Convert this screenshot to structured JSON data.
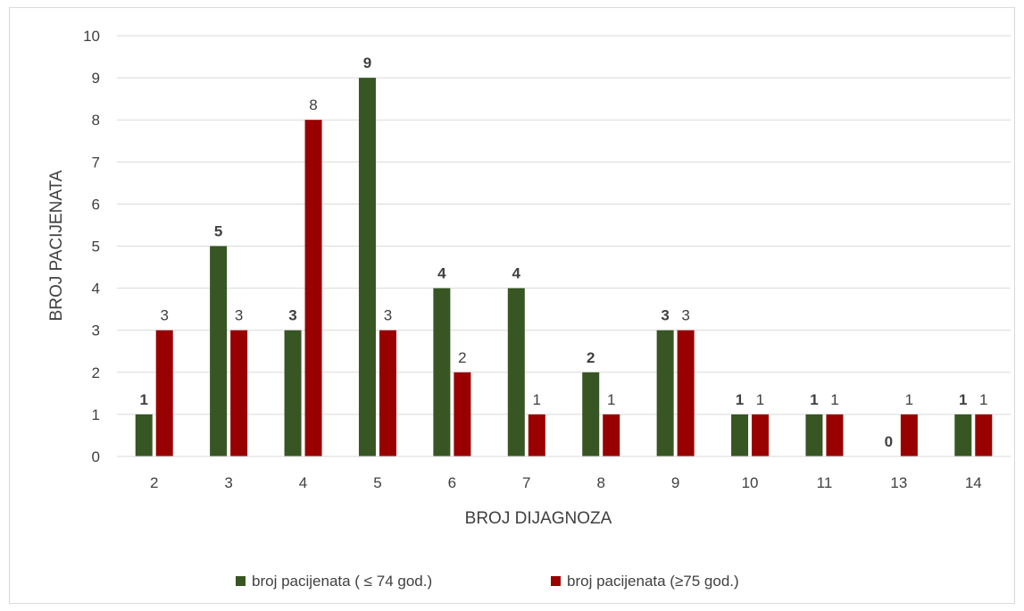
{
  "chart_data": {
    "type": "bar",
    "categories": [
      "2",
      "3",
      "4",
      "5",
      "6",
      "7",
      "8",
      "9",
      "10",
      "11",
      "13",
      "14"
    ],
    "series": [
      {
        "name": "broj pacijenata ( ≤ 74 god.)",
        "color": "#375623",
        "values": [
          1,
          5,
          3,
          9,
          4,
          4,
          2,
          3,
          1,
          1,
          0,
          1
        ]
      },
      {
        "name": "broj pacijenata (≥75 god.)",
        "color": "#990000",
        "values": [
          3,
          3,
          8,
          3,
          2,
          1,
          1,
          3,
          1,
          1,
          1,
          1
        ]
      }
    ],
    "xlabel": "BROJ DIJAGNOZA",
    "ylabel": "BROJ PACIJENATA",
    "ylim": [
      0,
      10
    ],
    "yticks": [
      "0",
      "1",
      "2",
      "3",
      "4",
      "5",
      "6",
      "7",
      "8",
      "9",
      "10"
    ],
    "grid": true,
    "legend_position": "bottom"
  }
}
